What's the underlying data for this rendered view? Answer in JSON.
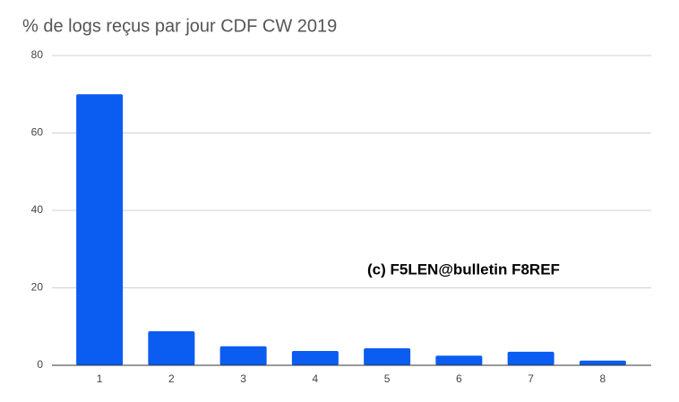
{
  "chart_data": {
    "type": "bar",
    "title": "% de logs reçus par jour CDF CW 2019",
    "annotation": "(c) F5LEN@bulletin F8REF",
    "categories": [
      "1",
      "2",
      "3",
      "4",
      "5",
      "6",
      "7",
      "8"
    ],
    "values": [
      70,
      8.8,
      4.9,
      3.7,
      4.4,
      2.5,
      3.5,
      1.2
    ],
    "color": "#0b5cf0",
    "ylim": [
      0,
      80
    ],
    "yticks": [
      0,
      20,
      40,
      60,
      80
    ],
    "grid": true
  }
}
